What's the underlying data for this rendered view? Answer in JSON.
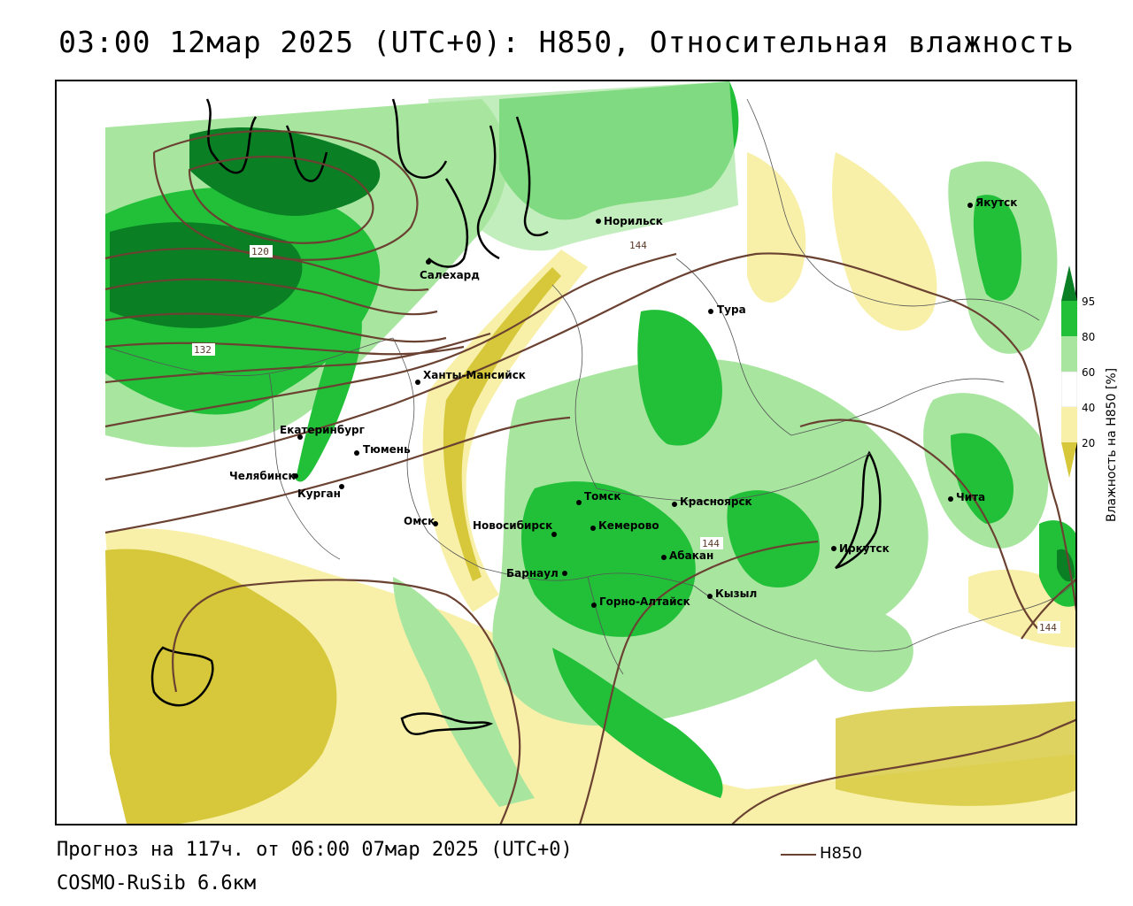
{
  "title": "03:00 12мар 2025 (UTC+0): H850, Относительная влажность",
  "footer": {
    "forecast": "Прогноз на 117ч. от 06:00 07мар 2025 (UTC+0)",
    "model": "COSMO-RuSib 6.6км",
    "line_legend_label": "H850"
  },
  "legend": {
    "title": "Влажность на H850 [%]",
    "ticks": [
      "95",
      "80",
      "60",
      "40",
      "20"
    ],
    "colors": {
      "95_plus": "#0a7f24",
      "80_95": "#22c039",
      "60_80": "#a8e6a0",
      "40_60": "#ffffff",
      "20_40": "#f8f0a8",
      "below_20": "#d6c83a"
    }
  },
  "contour_color": "#6b4232",
  "contour_labels": [
    "120",
    "132",
    "144",
    "144",
    "144"
  ],
  "cities": [
    {
      "name": "Норильск"
    },
    {
      "name": "Якутск"
    },
    {
      "name": "Салехард"
    },
    {
      "name": "Тура"
    },
    {
      "name": "Ханты-Мансийск"
    },
    {
      "name": "Екатеринбург"
    },
    {
      "name": "Тюмень"
    },
    {
      "name": "Челябинск"
    },
    {
      "name": "Курган"
    },
    {
      "name": "Омск"
    },
    {
      "name": "Новосибирск"
    },
    {
      "name": "Томск"
    },
    {
      "name": "Кемерово"
    },
    {
      "name": "Красноярск"
    },
    {
      "name": "Абакан"
    },
    {
      "name": "Барнаул"
    },
    {
      "name": "Горно-Алтайск"
    },
    {
      "name": "Кызыл"
    },
    {
      "name": "Иркутск"
    },
    {
      "name": "Чита"
    }
  ]
}
